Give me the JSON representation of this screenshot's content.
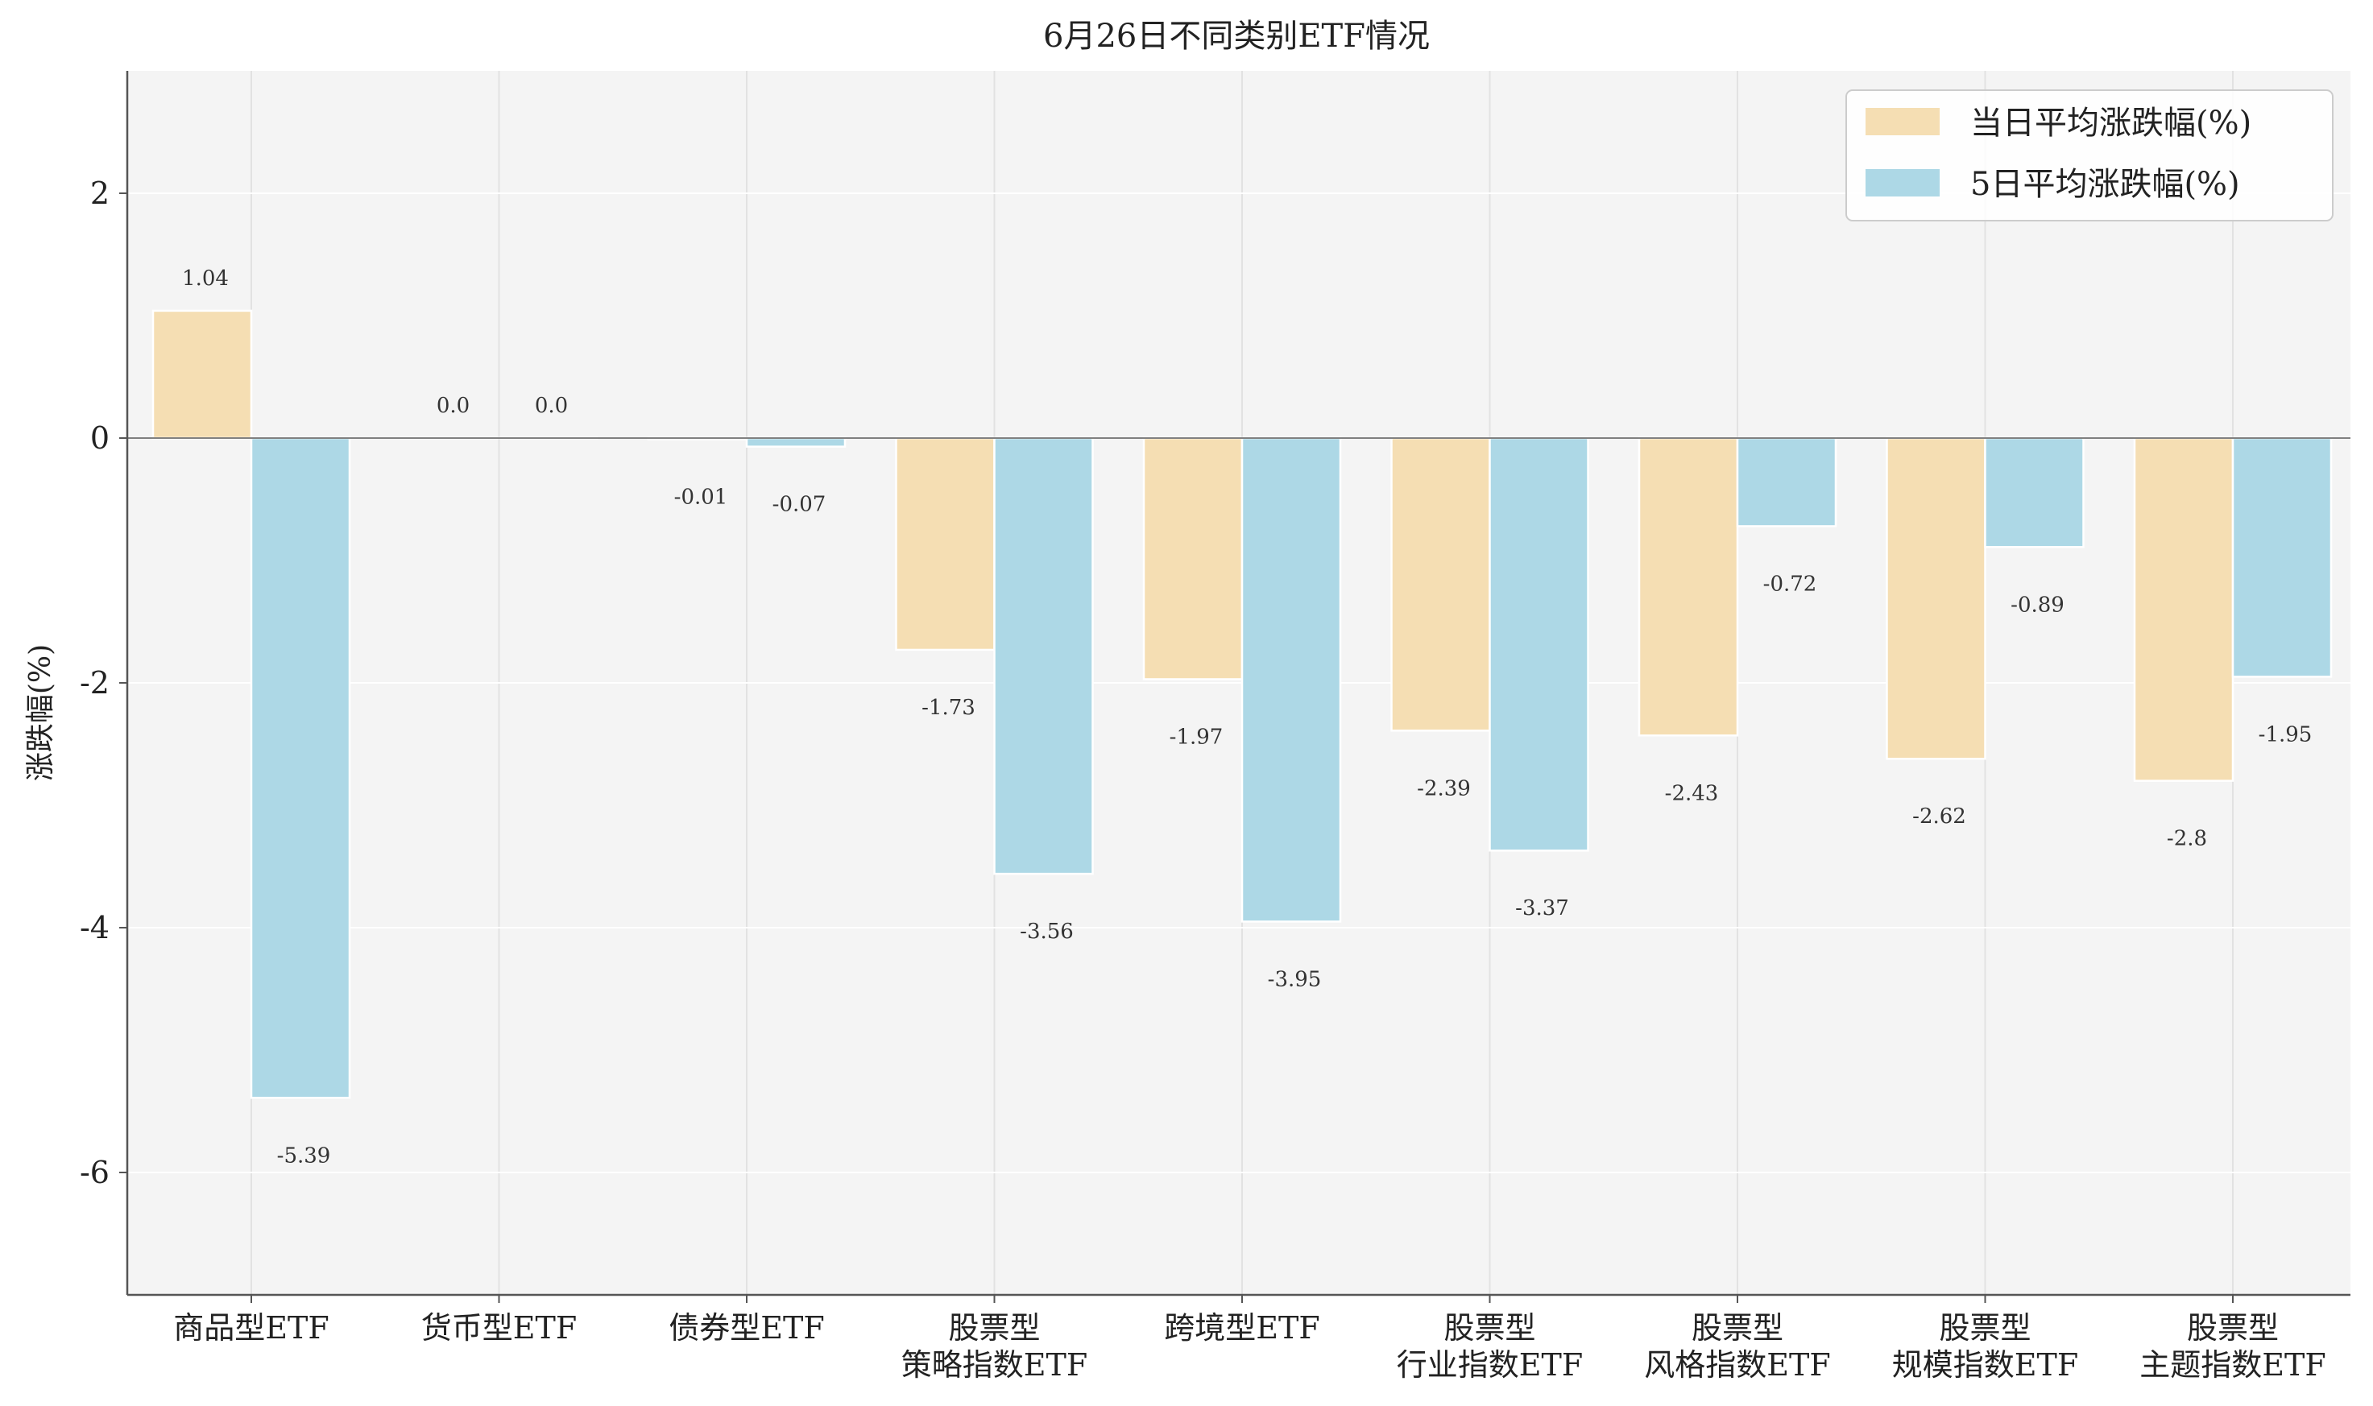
{
  "chart_data": {
    "type": "bar",
    "title": "6月26日不同类别ETF情况",
    "ylabel": "涨跌幅(%)",
    "xlabel": "",
    "ylim": [
      -7,
      3
    ],
    "yticks": [
      2,
      0,
      -2,
      -4,
      -6
    ],
    "grid": true,
    "legend_position": "top-right",
    "categories": [
      [
        "商品型ETF"
      ],
      [
        "货币型ETF"
      ],
      [
        "债券型ETF"
      ],
      [
        "股票型",
        "策略指数ETF"
      ],
      [
        "跨境型ETF"
      ],
      [
        "股票型",
        "行业指数ETF"
      ],
      [
        "股票型",
        "风格指数ETF"
      ],
      [
        "股票型",
        "规模指数ETF"
      ],
      [
        "股票型",
        "主题指数ETF"
      ]
    ],
    "series": [
      {
        "name": "当日平均涨跌幅(%)",
        "color": "#f5deb3",
        "values": [
          1.04,
          0.0,
          -0.01,
          -1.73,
          -1.97,
          -2.39,
          -2.43,
          -2.62,
          -2.8
        ],
        "labels": [
          "1.04",
          "0.0",
          "-0.01",
          "-1.73",
          "-1.97",
          "-2.39",
          "-2.43",
          "-2.62",
          "-2.8"
        ]
      },
      {
        "name": "5日平均涨跌幅(%)",
        "color": "#add8e6",
        "values": [
          -5.39,
          0.0,
          -0.07,
          -3.56,
          -3.95,
          -3.37,
          -0.72,
          -0.89,
          -1.95
        ],
        "labels": [
          "-5.39",
          "0.0",
          "-0.07",
          "-3.56",
          "-3.95",
          "-3.37",
          "-0.72",
          "-0.89",
          "-1.95"
        ]
      }
    ]
  }
}
